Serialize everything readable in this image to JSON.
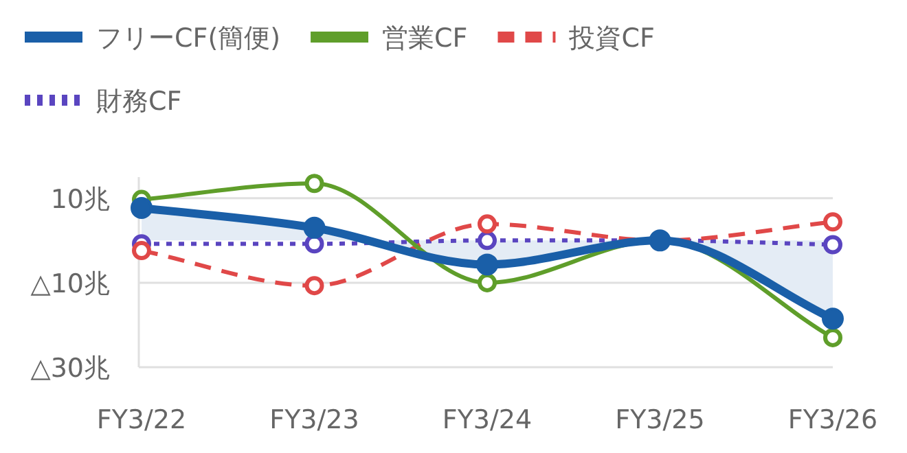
{
  "chart_data": {
    "type": "line",
    "categories": [
      "FY3/22",
      "FY3/23",
      "FY3/24",
      "FY3/25",
      "FY3/26"
    ],
    "series": [
      {
        "name": "フリーCF(簡便)",
        "type": "area",
        "color": "#1a5fa8",
        "line_style": "solid",
        "values": [
          7.7,
          3.0,
          -5.7,
          0,
          -18.5
        ]
      },
      {
        "name": "営業CF",
        "color": "#5f9e2a",
        "line_style": "solid",
        "values": [
          9.7,
          13.5,
          -10,
          0,
          -23
        ]
      },
      {
        "name": "投資CF",
        "color": "#e04848",
        "line_style": "dashed",
        "values": [
          -2.4,
          -10.7,
          3.9,
          0,
          4.4
        ]
      },
      {
        "name": "財務CF",
        "color": "#5a45c0",
        "line_style": "dotted",
        "values": [
          -0.8,
          -0.8,
          0,
          0,
          -1
        ]
      }
    ],
    "ylim": [
      -30,
      15
    ],
    "yticks": [
      {
        "value": 10,
        "label": "10兆"
      },
      {
        "value": -10,
        "label": "△10兆"
      },
      {
        "value": -30,
        "label": "△30兆"
      }
    ],
    "grid": "y",
    "legend": "top left",
    "marker": "circle"
  }
}
